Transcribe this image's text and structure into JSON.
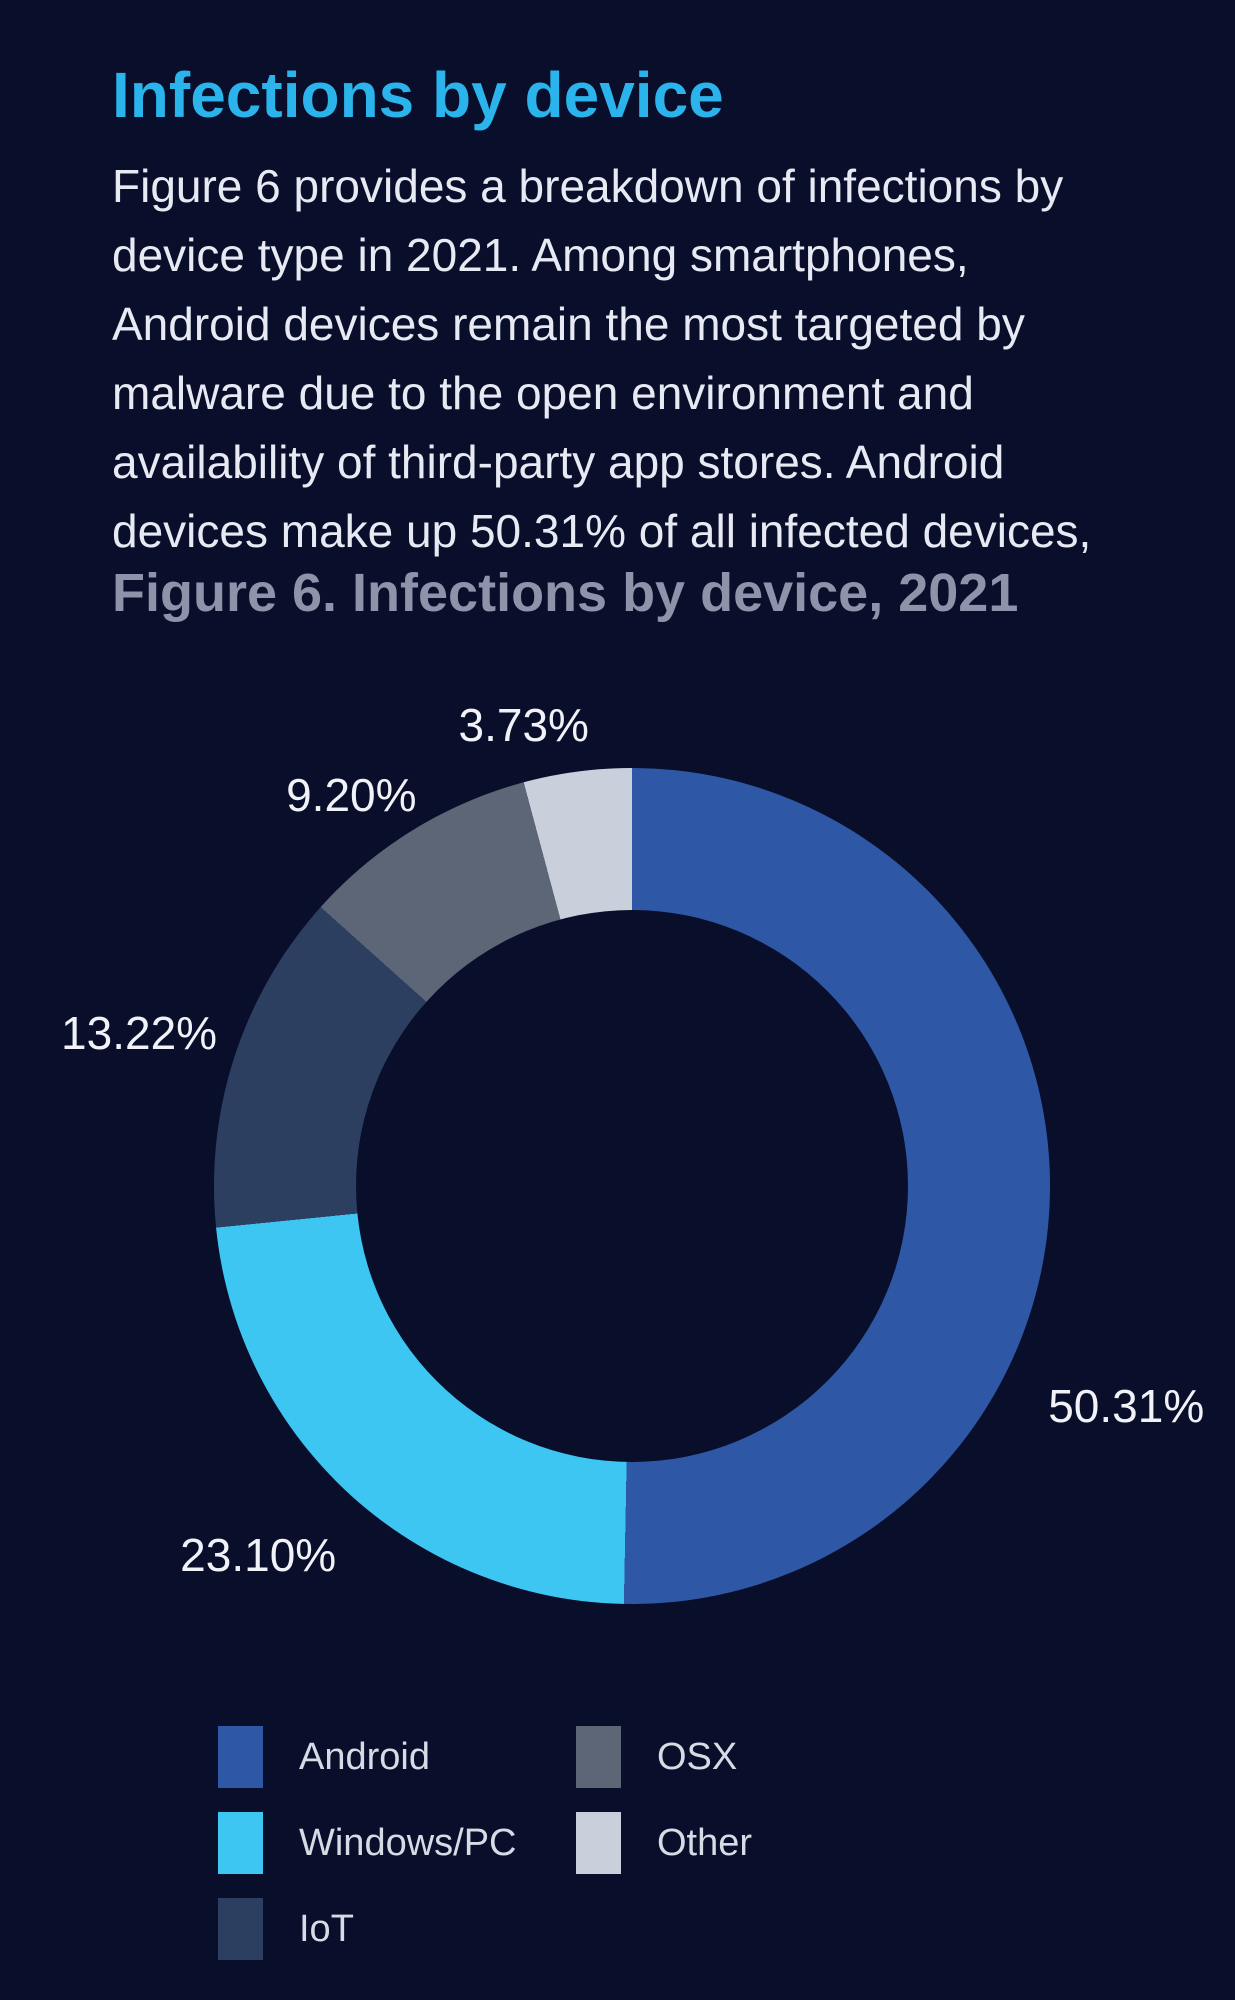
{
  "page": {
    "background": "#090E2B"
  },
  "section": {
    "heading": "Infections by device",
    "heading_color": "#2BB3EB"
  },
  "intro": {
    "color": "#E7EAF3",
    "lines": [
      "Figure 6 provides a breakdown of infections by",
      "device type in 2021. Among smartphones,",
      "Android devices remain the most targeted by",
      "malware due to the open environment and",
      "availability of third-party app stores. Android",
      "devices make up 50.31% of all infected devices,"
    ]
  },
  "figure": {
    "title": "Figure 6. Infections by device, 2021",
    "title_color": "#8E93A9"
  },
  "chart_data": {
    "type": "pie",
    "subtype": "donut",
    "title": "Figure 6. Infections by device, 2021",
    "unit": "%",
    "start_angle_deg": 0,
    "direction": "clockwise",
    "inner_radius_ratio": 0.66,
    "label_color": "#F0F2F7",
    "legend_position": "bottom-left-two-columns",
    "slices": [
      {
        "label": "Android",
        "value": 50.31,
        "display": "50.31%",
        "color": "#2E57A6",
        "label_angle_deg": 114.0,
        "label_radius": 541
      },
      {
        "label": "Windows/PC",
        "value": 23.1,
        "display": "23.10%",
        "color": "#3EC6F2",
        "label_angle_deg": 225.4,
        "label_radius": 525
      },
      {
        "label": "IoT",
        "value": 13.22,
        "display": "13.22%",
        "color": "#2D3F60",
        "label_angle_deg": 287.2,
        "label_radius": 516
      },
      {
        "label": "OSX",
        "value": 9.2,
        "display": "9.20%",
        "color": "#5C6677",
        "label_angle_deg": 324.3,
        "label_radius": 481
      },
      {
        "label": "Other",
        "value": 3.73,
        "display": "3.73%",
        "color": "#C9D0DB",
        "label_angle_deg": 346.8,
        "label_radius": 474
      }
    ]
  },
  "legend": {
    "text_color": "#D7DBE5",
    "items": [
      {
        "label": "Android",
        "color": "#2E57A6"
      },
      {
        "label": "Windows/PC",
        "color": "#3EC6F2"
      },
      {
        "label": "IoT",
        "color": "#2D3F60"
      },
      {
        "label": "OSX",
        "color": "#5C6677"
      },
      {
        "label": "Other",
        "color": "#C9D0DB"
      }
    ]
  }
}
